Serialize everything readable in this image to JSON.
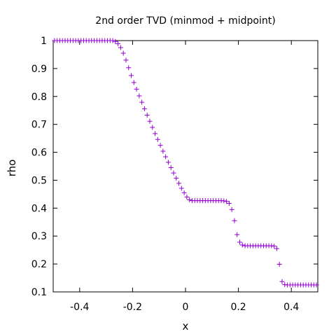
{
  "chart_data": {
    "type": "scatter",
    "title": "2nd order TVD (minmod + midpoint)",
    "xlabel": "x",
    "ylabel": "rho",
    "xlim": [
      -0.5,
      0.5
    ],
    "ylim": [
      0.1,
      1.0
    ],
    "xticks": [
      -0.4,
      -0.2,
      0,
      0.2,
      0.4
    ],
    "xtick_labels": [
      "-0.4",
      "-0.2",
      "0",
      "0.2",
      "0.4"
    ],
    "yticks": [
      0.1,
      0.2,
      0.3,
      0.4,
      0.5,
      0.6,
      0.7,
      0.8,
      0.9,
      1.0
    ],
    "ytick_labels": [
      "0.1",
      "0.2",
      "0.3",
      "0.4",
      "0.5",
      "0.6",
      "0.7",
      "0.8",
      "0.9",
      "1"
    ],
    "grid": false,
    "legend": "none",
    "marker": "+",
    "marker_color": "#9400d3",
    "series": [
      {
        "x": [
          -0.495,
          -0.485,
          -0.475,
          -0.465,
          -0.455,
          -0.445,
          -0.435,
          -0.425,
          -0.415,
          -0.405,
          -0.395,
          -0.385,
          -0.375,
          -0.365,
          -0.355,
          -0.345,
          -0.335,
          -0.325,
          -0.315,
          -0.305,
          -0.295,
          -0.285,
          -0.275,
          -0.265,
          -0.255,
          -0.245,
          -0.235,
          -0.225,
          -0.215,
          -0.205,
          -0.195,
          -0.185,
          -0.175,
          -0.165,
          -0.155,
          -0.145,
          -0.135,
          -0.125,
          -0.115,
          -0.105,
          -0.095,
          -0.085,
          -0.075,
          -0.065,
          -0.055,
          -0.045,
          -0.035,
          -0.025,
          -0.015,
          -0.005,
          0.005,
          0.015,
          0.025,
          0.035,
          0.045,
          0.055,
          0.065,
          0.075,
          0.085,
          0.095,
          0.105,
          0.115,
          0.125,
          0.135,
          0.145,
          0.155,
          0.165,
          0.175,
          0.185,
          0.195,
          0.205,
          0.215,
          0.225,
          0.235,
          0.245,
          0.255,
          0.265,
          0.275,
          0.285,
          0.295,
          0.305,
          0.315,
          0.325,
          0.335,
          0.345,
          0.355,
          0.365,
          0.375,
          0.385,
          0.395,
          0.405,
          0.415,
          0.425,
          0.435,
          0.445,
          0.455,
          0.465,
          0.475,
          0.485,
          0.495
        ],
        "y": [
          1.0,
          1.0,
          1.0,
          1.0,
          1.0,
          1.0,
          1.0,
          1.0,
          1.0,
          1.0,
          1.0,
          1.0,
          1.0,
          1.0,
          1.0,
          1.0,
          1.0,
          1.0,
          1.0,
          1.0,
          1.0,
          1.0,
          1.0,
          0.997,
          0.989,
          0.975,
          0.955,
          0.93,
          0.903,
          0.875,
          0.85,
          0.826,
          0.802,
          0.779,
          0.756,
          0.733,
          0.711,
          0.689,
          0.667,
          0.646,
          0.625,
          0.604,
          0.584,
          0.564,
          0.545,
          0.526,
          0.507,
          0.489,
          0.471,
          0.455,
          0.44,
          0.43,
          0.427,
          0.427,
          0.427,
          0.427,
          0.427,
          0.427,
          0.427,
          0.427,
          0.427,
          0.427,
          0.427,
          0.427,
          0.426,
          0.424,
          0.417,
          0.395,
          0.355,
          0.305,
          0.278,
          0.268,
          0.265,
          0.265,
          0.265,
          0.265,
          0.265,
          0.265,
          0.265,
          0.265,
          0.265,
          0.265,
          0.265,
          0.264,
          0.255,
          0.199,
          0.137,
          0.126,
          0.125,
          0.125,
          0.125,
          0.125,
          0.125,
          0.125,
          0.125,
          0.125,
          0.125,
          0.125,
          0.125,
          0.125
        ]
      }
    ]
  }
}
